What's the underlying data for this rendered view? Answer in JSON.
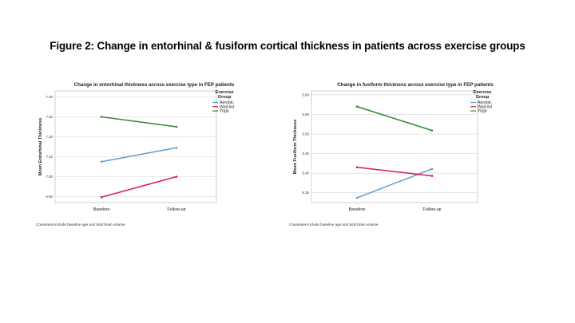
{
  "figure_title": "Figure 2: Change in entorhinal & fusiform cortical thickness in patients across exercise groups",
  "chart_data": [
    {
      "type": "line",
      "title": "Change in entorhinal thickness across exercise type in FEP patients",
      "xlabel": "",
      "ylabel": "Mean Entorhinal Thickness",
      "categories": [
        "Baseline",
        "Follow-up"
      ],
      "yticks": [
        "6.90",
        "7.00",
        "7.10",
        "7.20",
        "7.30",
        "7.40"
      ],
      "ylim": [
        6.87,
        7.43
      ],
      "grid": "horizontal",
      "legend_title": "Exercise Group",
      "series": [
        {
          "name": "Aerobic",
          "color": "#5b9bd5",
          "values": [
            7.075,
            7.145
          ]
        },
        {
          "name": "Wait-list",
          "color": "#d81b4f",
          "values": [
            6.897,
            7.0
          ]
        },
        {
          "name": "Yoga",
          "color": "#2e8b2e",
          "values": [
            7.3,
            7.25
          ]
        }
      ],
      "footnote": "Covariates include baseline age and total brain volume"
    },
    {
      "type": "line",
      "title": "Change in fusiform thickness across exercise type in FEP patients",
      "xlabel": "",
      "ylabel": "Mean Fusiform Thickness",
      "categories": [
        "Baseline",
        "Follow-up"
      ],
      "yticks": [
        "5.35",
        "5.40",
        "5.45",
        "5.50",
        "5.55",
        "5.60"
      ],
      "ylim": [
        5.325,
        5.61
      ],
      "grid": "horizontal",
      "legend_title": "Exercise Group",
      "series": [
        {
          "name": "Aerobic",
          "color": "#5b9bd5",
          "values": [
            5.337,
            5.411
          ]
        },
        {
          "name": "Wait-list",
          "color": "#d81b4f",
          "values": [
            5.415,
            5.393
          ]
        },
        {
          "name": "Yoga",
          "color": "#2e8b2e",
          "values": [
            5.57,
            5.509
          ]
        }
      ],
      "footnote": "Covariates include baseline age and total brain volume"
    }
  ]
}
